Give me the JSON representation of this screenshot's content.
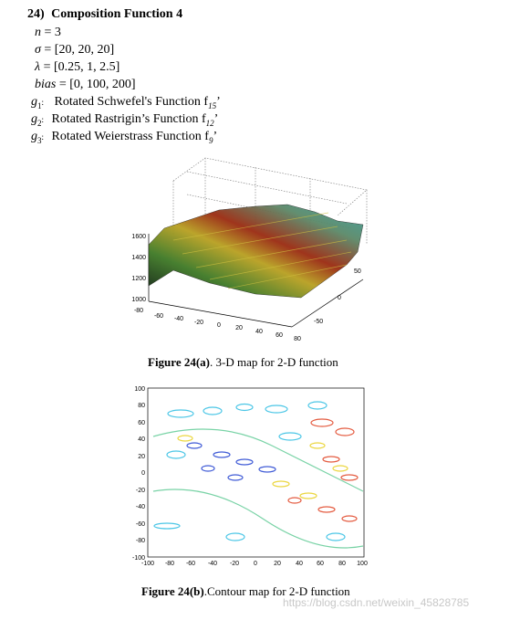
{
  "section": {
    "number": "24)",
    "title": "Composition Function 4"
  },
  "params": [
    {
      "name": "n",
      "value": "= 3"
    },
    {
      "name": "σ",
      "value": "= [20, 20, 20]"
    },
    {
      "name": "λ",
      "value": "= [0.25, 1, 2.5]"
    },
    {
      "name": "bias",
      "value": "= [0, 100, 200]"
    }
  ],
  "components": [
    {
      "g": "g",
      "sub": "1",
      "label": "Rotated Schwefel's Function f",
      "fsub": "15",
      "tail": "’"
    },
    {
      "g": "g",
      "sub": "2",
      "label": "Rotated Rastrigin’s Function f",
      "fsub": "12",
      "tail": "’"
    },
    {
      "g": "g",
      "sub": "3",
      "label": "Rotated Weierstrass Function f",
      "fsub": "9",
      "tail": "’"
    }
  ],
  "figure_a": {
    "label": "Figure 24(a)",
    "caption": ". 3-D map for 2-D function"
  },
  "figure_b": {
    "label": "Figure 24(b)",
    "caption": ".Contour map for 2-D function"
  },
  "watermark": "https://blog.csdn.net/weixin_45828785",
  "chart_data": [
    {
      "type": "surface",
      "title": "",
      "z_ticks": [
        "1000",
        "1200",
        "1400",
        "1600"
      ],
      "x_ticks": [
        "-80",
        "-60",
        "-40",
        "-20",
        "0",
        "20",
        "40",
        "60",
        "80"
      ],
      "y_ticks": [
        "-50",
        "0",
        "50"
      ],
      "colormap": "jet"
    },
    {
      "type": "contour",
      "title": "",
      "x_ticks": [
        "-100",
        "-80",
        "-60",
        "-40",
        "-20",
        "0",
        "20",
        "40",
        "60",
        "80",
        "100"
      ],
      "y_ticks": [
        "100",
        "80",
        "60",
        "40",
        "20",
        "0",
        "-20",
        "-40",
        "-60",
        "-80",
        "-100"
      ],
      "xlim": [
        -100,
        100
      ],
      "ylim": [
        -100,
        100
      ],
      "colormap": "jet"
    }
  ]
}
